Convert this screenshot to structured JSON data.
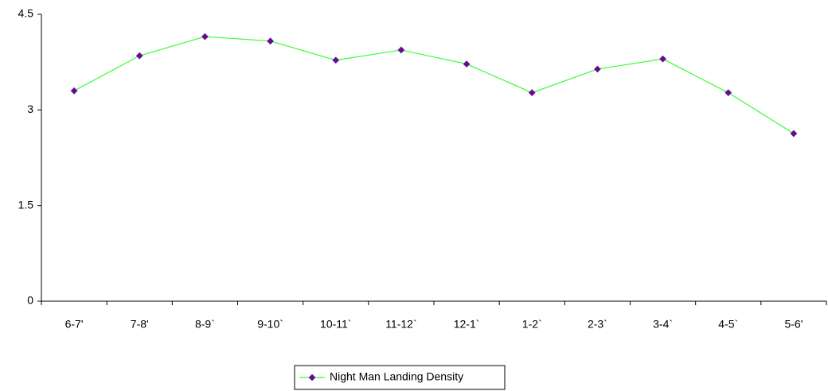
{
  "chart_data": {
    "type": "line",
    "categories": [
      "6-7'",
      "7-8'",
      "8-9`",
      "9-10`",
      "10-11`",
      "11-12`",
      "12-1`",
      "1-2`",
      "2-3`",
      "3-4`",
      "4-5`",
      "5-6'"
    ],
    "series": [
      {
        "name": "Night Man Landing Density",
        "color": "#33ff33",
        "marker_color": "#800080",
        "values": [
          3.3,
          3.85,
          4.15,
          4.08,
          3.78,
          3.94,
          3.72,
          3.27,
          3.64,
          3.8,
          3.27,
          2.63
        ]
      }
    ],
    "ylim": [
      0,
      4.5
    ],
    "yticks": [
      0,
      1.5,
      3,
      4.5
    ],
    "grid": false,
    "legend": "bottom"
  }
}
